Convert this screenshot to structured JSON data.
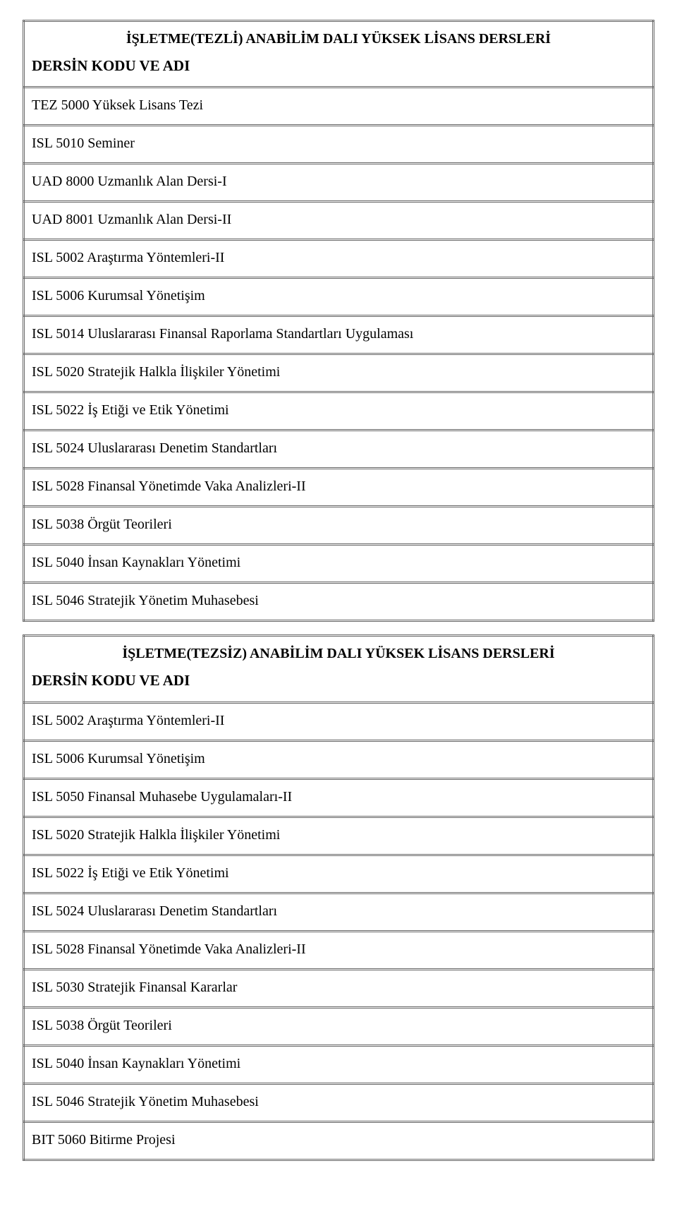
{
  "colors": {
    "text": "#000000",
    "background": "#ffffff",
    "border": "#666666"
  },
  "typography": {
    "font_family": "Times New Roman",
    "body_fontsize_pt": 15,
    "title_fontsize_pt": 16,
    "title_weight": "bold"
  },
  "tables": [
    {
      "title": "İŞLETME(TEZLİ) ANABİLİM DALI YÜKSEK LİSANS DERSLERİ",
      "sub_header": "DERSİN KODU VE ADI",
      "rows": [
        "TEZ 5000 Yüksek Lisans Tezi",
        "ISL 5010 Seminer",
        "UAD 8000 Uzmanlık Alan Dersi-I",
        "UAD 8001 Uzmanlık Alan Dersi-II",
        "ISL 5002 Araştırma Yöntemleri-II",
        "ISL 5006 Kurumsal Yönetişim",
        "ISL 5014 Uluslararası Finansal Raporlama Standartları Uygulaması",
        "ISL 5020 Stratejik Halkla İlişkiler Yönetimi",
        "ISL 5022 İş Etiği ve Etik Yönetimi",
        "ISL 5024 Uluslararası Denetim Standartları",
        "ISL 5028 Finansal Yönetimde Vaka Analizleri-II",
        "ISL 5038 Örgüt Teorileri",
        "ISL 5040 İnsan Kaynakları Yönetimi",
        "ISL 5046 Stratejik Yönetim Muhasebesi"
      ]
    },
    {
      "title": "İŞLETME(TEZSİZ) ANABİLİM DALI YÜKSEK LİSANS DERSLERİ",
      "sub_header": "DERSİN KODU VE ADI",
      "rows": [
        "ISL 5002 Araştırma Yöntemleri-II",
        "ISL 5006 Kurumsal Yönetişim",
        "ISL 5050 Finansal Muhasebe Uygulamaları-II",
        "ISL 5020 Stratejik Halkla İlişkiler Yönetimi",
        "ISL 5022 İş Etiği ve Etik Yönetimi",
        "ISL 5024 Uluslararası Denetim Standartları",
        "ISL 5028 Finansal Yönetimde Vaka Analizleri-II",
        "ISL 5030 Stratejik Finansal Kararlar",
        "ISL 5038 Örgüt Teorileri",
        "ISL 5040 İnsan Kaynakları Yönetimi",
        "ISL 5046 Stratejik Yönetim Muhasebesi",
        "BIT 5060 Bitirme Projesi"
      ]
    }
  ]
}
